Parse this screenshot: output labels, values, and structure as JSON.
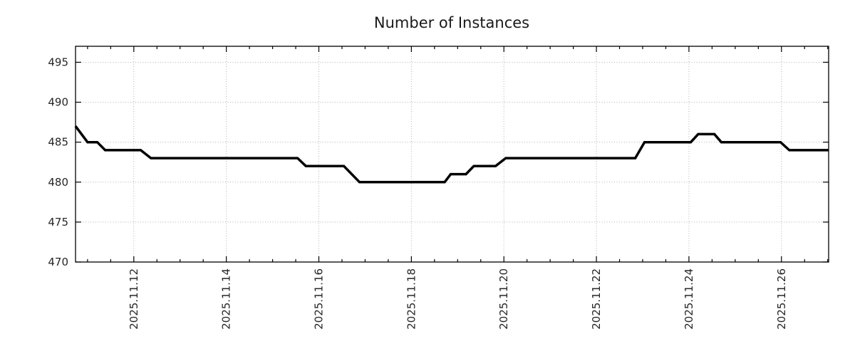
{
  "chart_data": {
    "type": "line",
    "title": "Number of Instances",
    "grid": {
      "show": true,
      "style": "dotted",
      "color": "#b0b0b0"
    },
    "legend": "none",
    "colors": {
      "background": "#ffffff",
      "axis": "#000000",
      "text": "#1a1a1a",
      "series_line": "#000000"
    },
    "x_axis": {
      "label": "",
      "unit": "days offset from 2025-11-12",
      "range": [
        -1.26,
        15.02
      ],
      "major_ticks": [
        0,
        2,
        4,
        6,
        8,
        10,
        12,
        14
      ],
      "major_tick_labels": [
        "2025.11.12",
        "2025.11.14",
        "2025.11.16",
        "2025.11.18",
        "2025.11.20",
        "2025.11.22",
        "2025.11.24",
        "2025.11.26"
      ],
      "minor_tick_step": 0.5,
      "tick_label_rotation_deg": -90
    },
    "y_axis": {
      "label": "",
      "range": [
        470,
        497
      ],
      "major_ticks": [
        470,
        475,
        480,
        485,
        490,
        495
      ],
      "major_tick_labels": [
        "470",
        "475",
        "480",
        "485",
        "490",
        "495"
      ]
    },
    "series": [
      {
        "name": "instances",
        "color": "#000000",
        "line_width": 3.5,
        "points": [
          [
            -1.26,
            487
          ],
          [
            -1.0,
            485
          ],
          [
            -0.79,
            485
          ],
          [
            -0.62,
            484
          ],
          [
            0.15,
            484
          ],
          [
            0.37,
            483
          ],
          [
            3.54,
            483
          ],
          [
            3.72,
            482
          ],
          [
            4.54,
            482
          ],
          [
            4.88,
            480
          ],
          [
            6.72,
            480
          ],
          [
            6.85,
            481
          ],
          [
            7.18,
            481
          ],
          [
            7.35,
            482
          ],
          [
            7.82,
            482
          ],
          [
            8.04,
            483
          ],
          [
            10.84,
            483
          ],
          [
            11.04,
            485
          ],
          [
            12.04,
            485
          ],
          [
            12.2,
            486
          ],
          [
            12.55,
            486
          ],
          [
            12.7,
            485
          ],
          [
            13.98,
            485
          ],
          [
            14.17,
            484
          ],
          [
            15.02,
            484
          ]
        ]
      }
    ]
  }
}
